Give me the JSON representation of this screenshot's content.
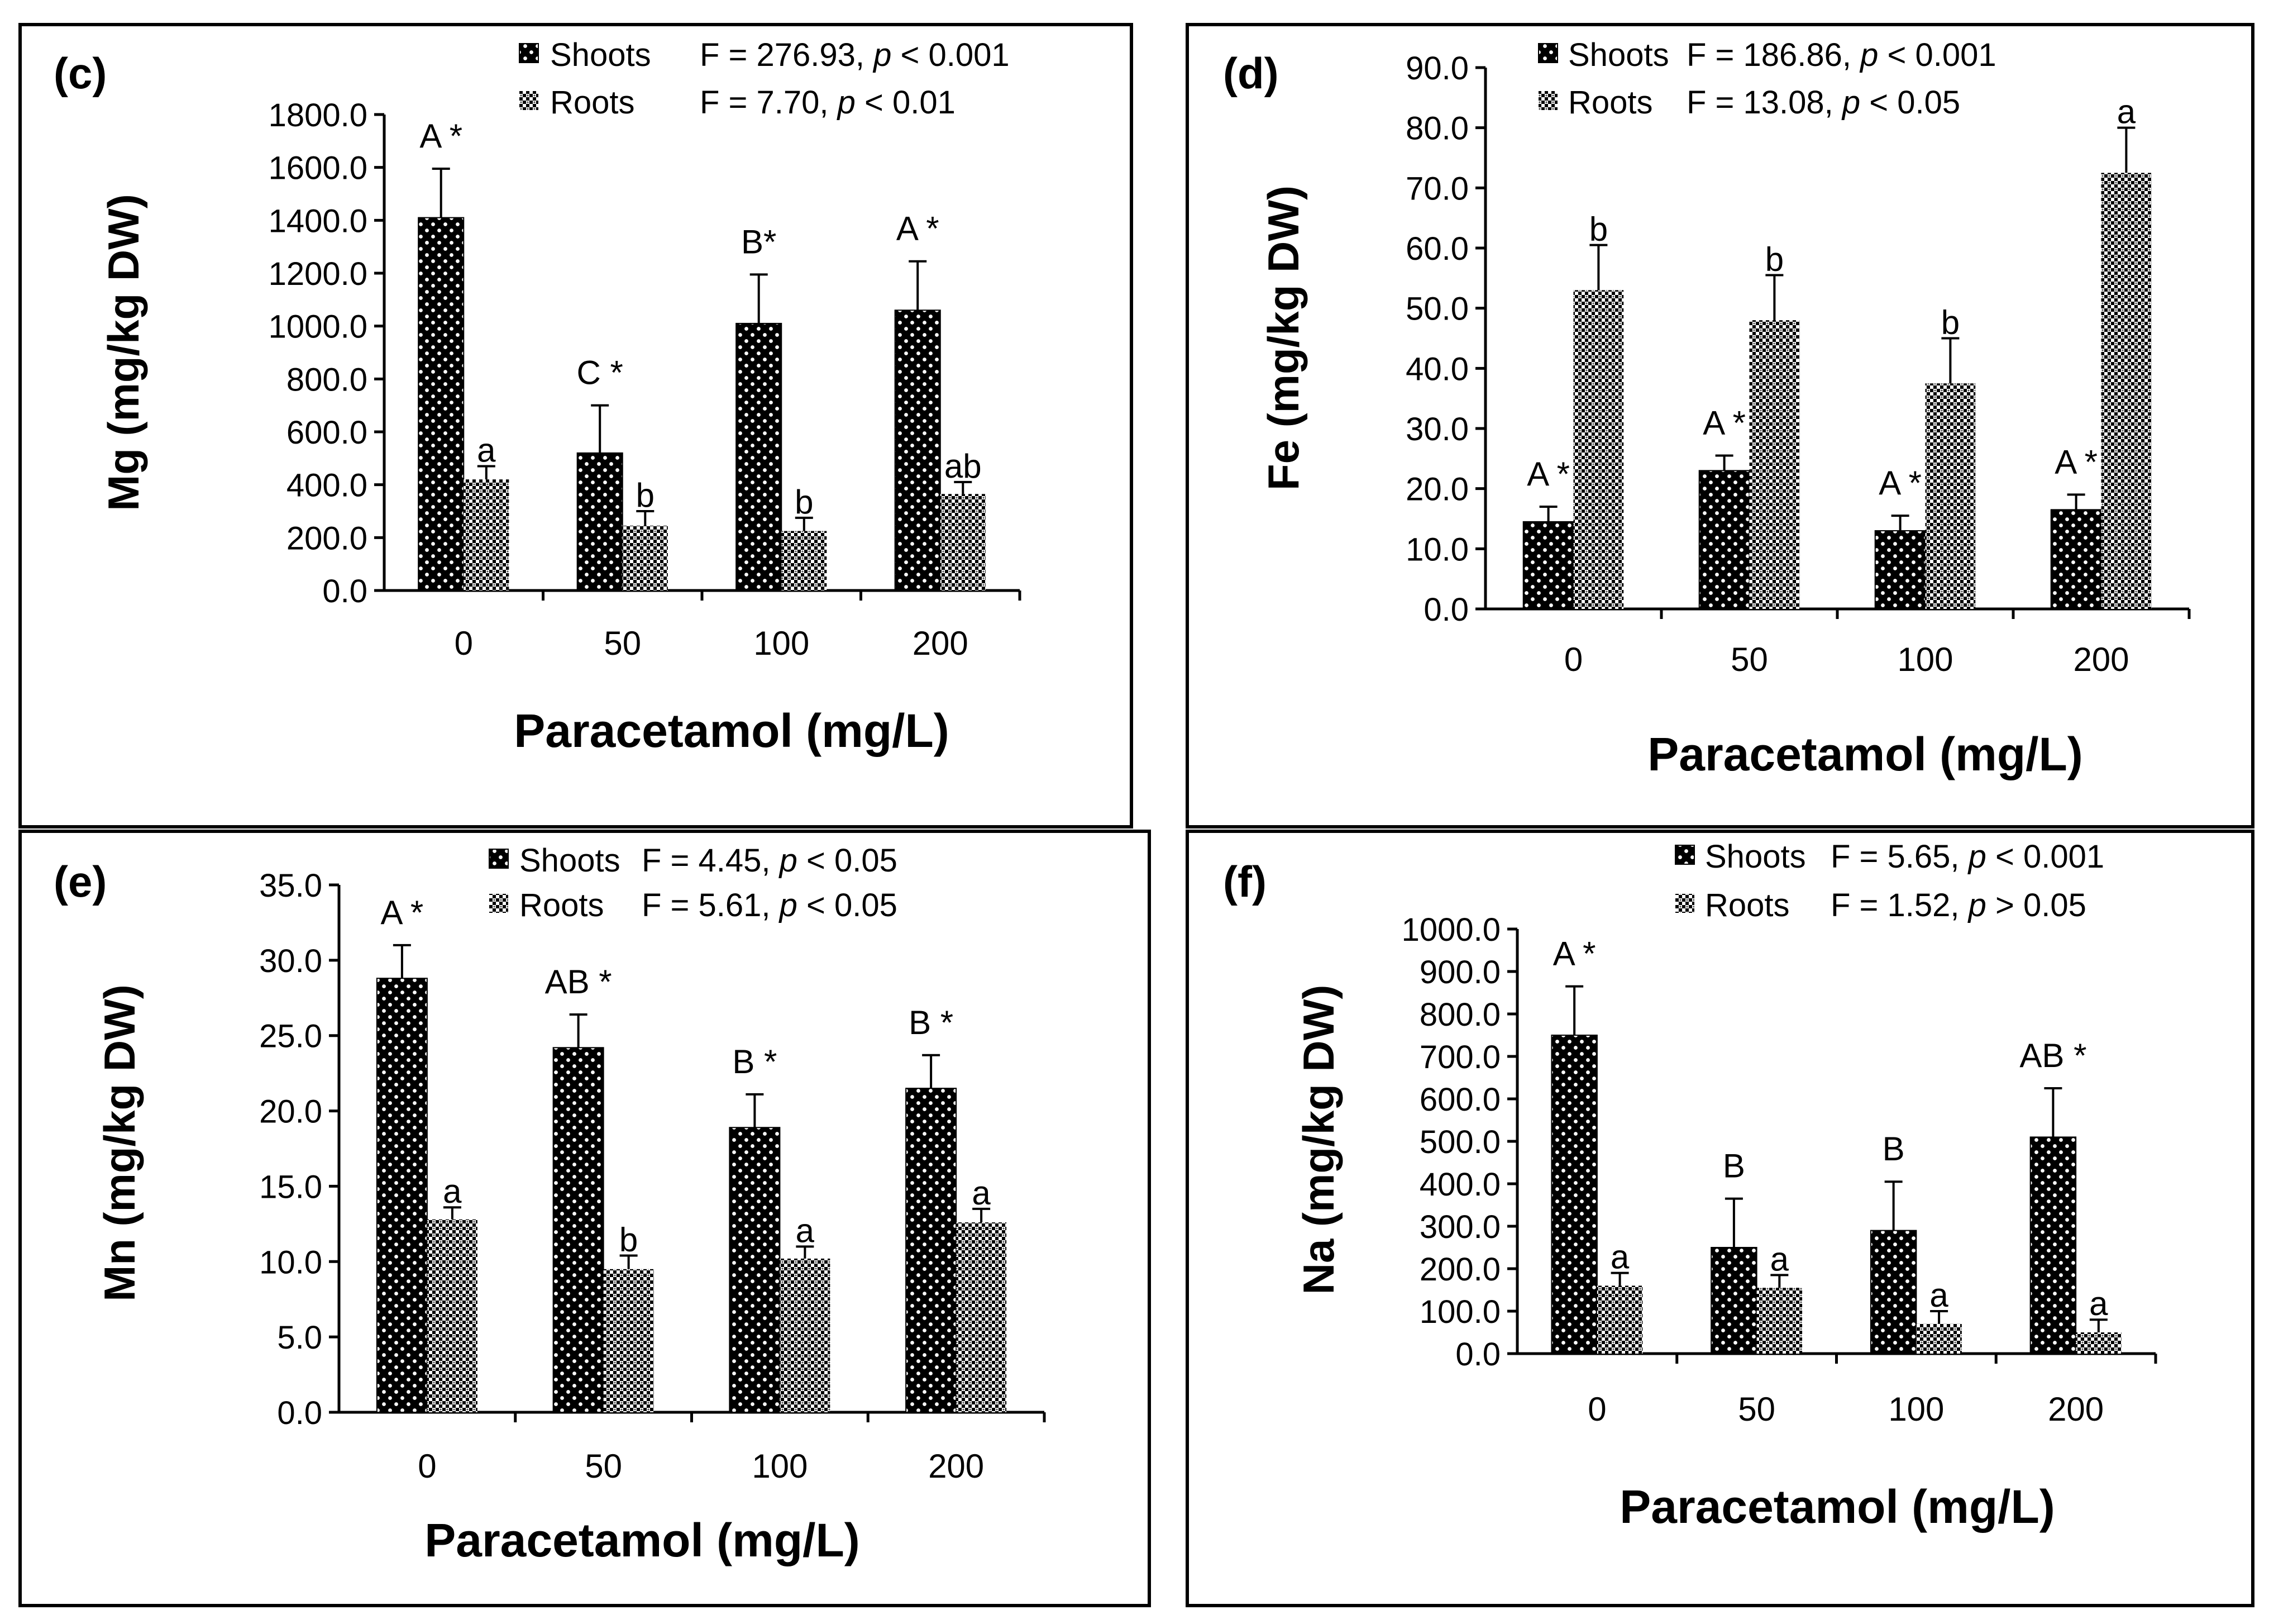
{
  "pattern_colors": {
    "shoots_bg": "#000000",
    "shoots_dot": "#ffffff",
    "roots_bg": "#ffffff",
    "roots_dot": "#000000",
    "frame": "#000000"
  },
  "chart_data": [
    {
      "type": "bar",
      "panel": "(c)",
      "xlabel": "Paracetamol (mg/L)",
      "ylabel": "Mg (mg/kg DW)",
      "categories": [
        "0",
        "50",
        "100",
        "200"
      ],
      "ylim": [
        0,
        1800
      ],
      "ytick_labels": [
        "0.0",
        "200.0",
        "400.0",
        "600.0",
        "800.0",
        "1000.0",
        "1200.0",
        "1400.0",
        "1600.0",
        "1800.0"
      ],
      "series": [
        {
          "name": "Shoots",
          "stat_prefix": "F = 276.93, ",
          "stat_p": "p",
          "stat_suffix": " < 0.001",
          "values": [
            1410,
            520,
            1010,
            1060
          ],
          "errors": [
            185,
            180,
            185,
            185
          ],
          "labels": [
            "A *",
            "C *",
            "B*",
            "A *"
          ]
        },
        {
          "name": "Roots",
          "stat_prefix": "F = 7.70, ",
          "stat_p": "p",
          "stat_suffix": " < 0.01",
          "values": [
            420,
            245,
            225,
            365
          ],
          "errors": [
            50,
            55,
            50,
            45
          ],
          "labels": [
            "a",
            "b",
            "b",
            "ab"
          ]
        }
      ]
    },
    {
      "type": "bar",
      "panel": "(d)",
      "xlabel": "Paracetamol (mg/L)",
      "ylabel": "Fe (mg/kg DW)",
      "categories": [
        "0",
        "50",
        "100",
        "200"
      ],
      "ylim": [
        0,
        90
      ],
      "ytick_labels": [
        "0.0",
        "10.0",
        "20.0",
        "30.0",
        "40.0",
        "50.0",
        "60.0",
        "70.0",
        "80.0",
        "90.0"
      ],
      "series": [
        {
          "name": "Shoots",
          "stat_prefix": "F = 186.86, ",
          "stat_p": "p",
          "stat_suffix": " < 0.001",
          "values": [
            14.5,
            23,
            13,
            16.5
          ],
          "errors": [
            2.5,
            2.5,
            2.5,
            2.5
          ],
          "labels": [
            "A *",
            "A *",
            "A *",
            "A *"
          ]
        },
        {
          "name": "Roots",
          "stat_prefix": "F = 13.08, ",
          "stat_p": "p",
          "stat_suffix": " < 0.05",
          "values": [
            53,
            48,
            37.5,
            72.5
          ],
          "errors": [
            7.5,
            7.5,
            7.5,
            7.5
          ],
          "labels": [
            "b",
            "b",
            "b",
            "a"
          ]
        }
      ]
    },
    {
      "type": "bar",
      "panel": "(e)",
      "xlabel": "Paracetamol (mg/L)",
      "ylabel": "Mn (mg/kg DW)",
      "categories": [
        "0",
        "50",
        "100",
        "200"
      ],
      "ylim": [
        0,
        35
      ],
      "ytick_labels": [
        "0.0",
        "5.0",
        "10.0",
        "15.0",
        "20.0",
        "25.0",
        "30.0",
        "35.0"
      ],
      "series": [
        {
          "name": "Shoots",
          "stat_prefix": "F =  4.45, ",
          "stat_p": "p",
          "stat_suffix": " < 0.05",
          "values": [
            28.8,
            24.2,
            18.9,
            21.5
          ],
          "errors": [
            2.2,
            2.2,
            2.2,
            2.2
          ],
          "labels": [
            "A *",
            "AB *",
            "B *",
            "B *"
          ]
        },
        {
          "name": "Roots",
          "stat_prefix": "F =  5.61, ",
          "stat_p": "p",
          "stat_suffix": " < 0.05",
          "values": [
            12.8,
            9.5,
            10.2,
            12.6
          ],
          "errors": [
            0.8,
            0.9,
            0.8,
            0.9
          ],
          "labels": [
            "a",
            "b",
            "a",
            "a"
          ]
        }
      ]
    },
    {
      "type": "bar",
      "panel": "(f)",
      "xlabel": "Paracetamol (mg/L)",
      "ylabel": "Na (mg/kg DW)",
      "categories": [
        "0",
        "50",
        "100",
        "200"
      ],
      "ylim": [
        0,
        1000
      ],
      "ytick_labels": [
        "0.0",
        "100.0",
        "200.0",
        "300.0",
        "400.0",
        "500.0",
        "600.0",
        "700.0",
        "800.0",
        "900.0",
        "1000.0"
      ],
      "series": [
        {
          "name": "Shoots",
          "stat_prefix": "F = 5.65,  ",
          "stat_p": "p",
          "stat_suffix": " < 0.001",
          "values": [
            750,
            250,
            290,
            510
          ],
          "errors": [
            115,
            115,
            115,
            115
          ],
          "labels": [
            "A *",
            "B",
            "B",
            "AB *"
          ]
        },
        {
          "name": "Roots",
          "stat_prefix": "F = 1.52, ",
          "stat_p": "p",
          "stat_suffix": " > 0.05",
          "values": [
            160,
            155,
            70,
            50
          ],
          "errors": [
            30,
            30,
            30,
            30
          ],
          "labels": [
            "a",
            "a",
            "a",
            "a"
          ]
        }
      ]
    }
  ]
}
